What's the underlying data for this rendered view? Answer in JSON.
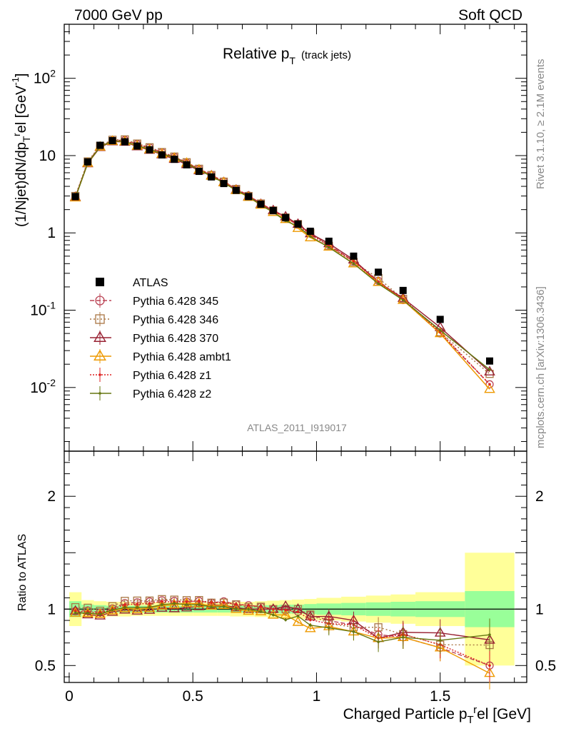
{
  "header": {
    "left": "7000 GeV pp",
    "right": "Soft QCD"
  },
  "side_labels": {
    "rivet": "Rivet 3.1.10, ≥ 2.1M events",
    "mcplots": "mcplots.cern.ch [arXiv:1306.3436]"
  },
  "analysis_label": "ATLAS_2011_I919017",
  "chart_data": [
    {
      "type": "line",
      "panel": "main",
      "title_main": "Relative p",
      "title_sub": "T",
      "title_extra": "(track jets)",
      "ylabel": "(1/Njet)dN/dp_T^rel [GeV^-1]",
      "y_scale": "log",
      "ylim": [
        0.0015,
        500
      ],
      "xlim": [
        -0.02,
        1.85
      ],
      "yticks": [
        {
          "value": 0.01,
          "base": "10",
          "exp": "-2"
        },
        {
          "value": 0.1,
          "base": "10",
          "exp": "-1"
        },
        {
          "value": 1,
          "base": "1",
          "exp": ""
        },
        {
          "value": 10,
          "base": "10",
          "exp": ""
        },
        {
          "value": 100,
          "base": "10",
          "exp": "2"
        }
      ],
      "x": [
        0.025,
        0.075,
        0.125,
        0.175,
        0.225,
        0.275,
        0.325,
        0.375,
        0.425,
        0.475,
        0.525,
        0.575,
        0.625,
        0.675,
        0.725,
        0.775,
        0.825,
        0.875,
        0.925,
        0.975,
        1.05,
        1.15,
        1.25,
        1.35,
        1.5,
        1.7
      ],
      "atlas": {
        "name": "ATLAS",
        "values": [
          2.95,
          8.3,
          13.6,
          15.6,
          15.1,
          13.3,
          11.9,
          10.2,
          8.95,
          7.6,
          6.25,
          5.3,
          4.35,
          3.55,
          2.95,
          2.35,
          1.95,
          1.58,
          1.3,
          1.05,
          0.78,
          0.5,
          0.31,
          0.18,
          0.076,
          0.022
        ]
      },
      "series": [
        {
          "name": "Pythia 6.428 345",
          "color": "#bb4455",
          "marker": "circle",
          "dash": "6,3",
          "values": [
            2.9,
            8.2,
            13.2,
            15.7,
            15.9,
            14.1,
            12.7,
            11.0,
            9.6,
            8.1,
            6.7,
            5.6,
            4.65,
            3.7,
            3.05,
            2.4,
            1.95,
            1.56,
            1.27,
            1.0,
            0.7,
            0.43,
            0.24,
            0.135,
            0.05,
            0.011
          ]
        },
        {
          "name": "Pythia 6.428 346",
          "color": "#aa7744",
          "marker": "square",
          "dash": "2,3",
          "values": [
            3.0,
            8.4,
            13.4,
            16.0,
            16.2,
            14.3,
            12.8,
            11.1,
            9.7,
            8.2,
            6.75,
            5.6,
            4.6,
            3.7,
            3.0,
            2.4,
            1.95,
            1.58,
            1.3,
            1.0,
            0.68,
            0.42,
            0.26,
            0.14,
            0.052,
            0.015
          ]
        },
        {
          "name": "Pythia 6.428 370",
          "color": "#992233",
          "marker": "triangle",
          "dash": "",
          "values": [
            2.9,
            7.9,
            12.8,
            15.2,
            15.0,
            13.1,
            11.8,
            10.3,
            9.0,
            7.7,
            6.4,
            5.5,
            4.5,
            3.6,
            2.95,
            2.35,
            1.95,
            1.62,
            1.3,
            0.98,
            0.73,
            0.45,
            0.23,
            0.143,
            0.06,
            0.016
          ]
        },
        {
          "name": "Pythia 6.428 ambt1",
          "color": "#ee9900",
          "marker": "triangle",
          "dash": "",
          "values": [
            2.85,
            8.0,
            13.0,
            15.4,
            15.2,
            13.3,
            12.0,
            10.5,
            9.3,
            8.0,
            6.55,
            5.45,
            4.5,
            3.55,
            2.9,
            2.3,
            1.85,
            1.5,
            1.15,
            0.87,
            0.66,
            0.4,
            0.23,
            0.135,
            0.05,
            0.0095
          ]
        },
        {
          "name": "Pythia 6.428 z1",
          "color": "#dd2222",
          "marker": "dot",
          "dash": "2,2",
          "values": [
            2.9,
            8.1,
            13.1,
            15.6,
            15.7,
            13.9,
            12.5,
            10.9,
            9.5,
            8.1,
            6.7,
            5.6,
            4.6,
            3.7,
            3.05,
            2.4,
            1.95,
            1.57,
            1.27,
            0.95,
            0.68,
            0.43,
            0.23,
            0.14,
            0.052,
            0.011
          ]
        },
        {
          "name": "Pythia 6.428 z2",
          "color": "#667711",
          "marker": "dot",
          "dash": "",
          "values": [
            2.85,
            8.0,
            13.0,
            15.5,
            15.3,
            13.5,
            12.1,
            10.6,
            9.4,
            7.9,
            6.5,
            5.4,
            4.45,
            3.55,
            2.95,
            2.3,
            1.85,
            1.43,
            1.22,
            0.9,
            0.65,
            0.4,
            0.22,
            0.135,
            0.055,
            0.017
          ]
        }
      ]
    },
    {
      "type": "line",
      "panel": "ratio",
      "ylabel": "Ratio to ATLAS",
      "xlabel": "Charged Particle p_T^rel [GeV]",
      "ylim": [
        0.35,
        2.4
      ],
      "xlim": [
        -0.02,
        1.85
      ],
      "yticks": [
        0.5,
        1,
        2
      ],
      "xticks": [
        0,
        0.5,
        1,
        1.5
      ],
      "band_bins": [
        0,
        0.05,
        0.1,
        0.15,
        0.2,
        0.25,
        0.3,
        0.35,
        0.4,
        0.45,
        0.5,
        0.55,
        0.6,
        0.65,
        0.7,
        0.75,
        0.8,
        0.85,
        0.9,
        0.95,
        1.0,
        1.1,
        1.2,
        1.3,
        1.4,
        1.6,
        1.8
      ],
      "band_inner": [
        0.07,
        0.04,
        0.035,
        0.03,
        0.03,
        0.03,
        0.03,
        0.03,
        0.03,
        0.03,
        0.03,
        0.03,
        0.03,
        0.03,
        0.03,
        0.035,
        0.035,
        0.04,
        0.04,
        0.045,
        0.05,
        0.055,
        0.06,
        0.065,
        0.07,
        0.16
      ],
      "band_outer": [
        0.15,
        0.08,
        0.07,
        0.065,
        0.065,
        0.06,
        0.06,
        0.06,
        0.06,
        0.06,
        0.06,
        0.06,
        0.06,
        0.065,
        0.065,
        0.07,
        0.075,
        0.08,
        0.085,
        0.09,
        0.1,
        0.11,
        0.12,
        0.13,
        0.15,
        0.5
      ],
      "band_colors": {
        "inner": "#99ff99",
        "outer": "#ffff99"
      }
    }
  ]
}
